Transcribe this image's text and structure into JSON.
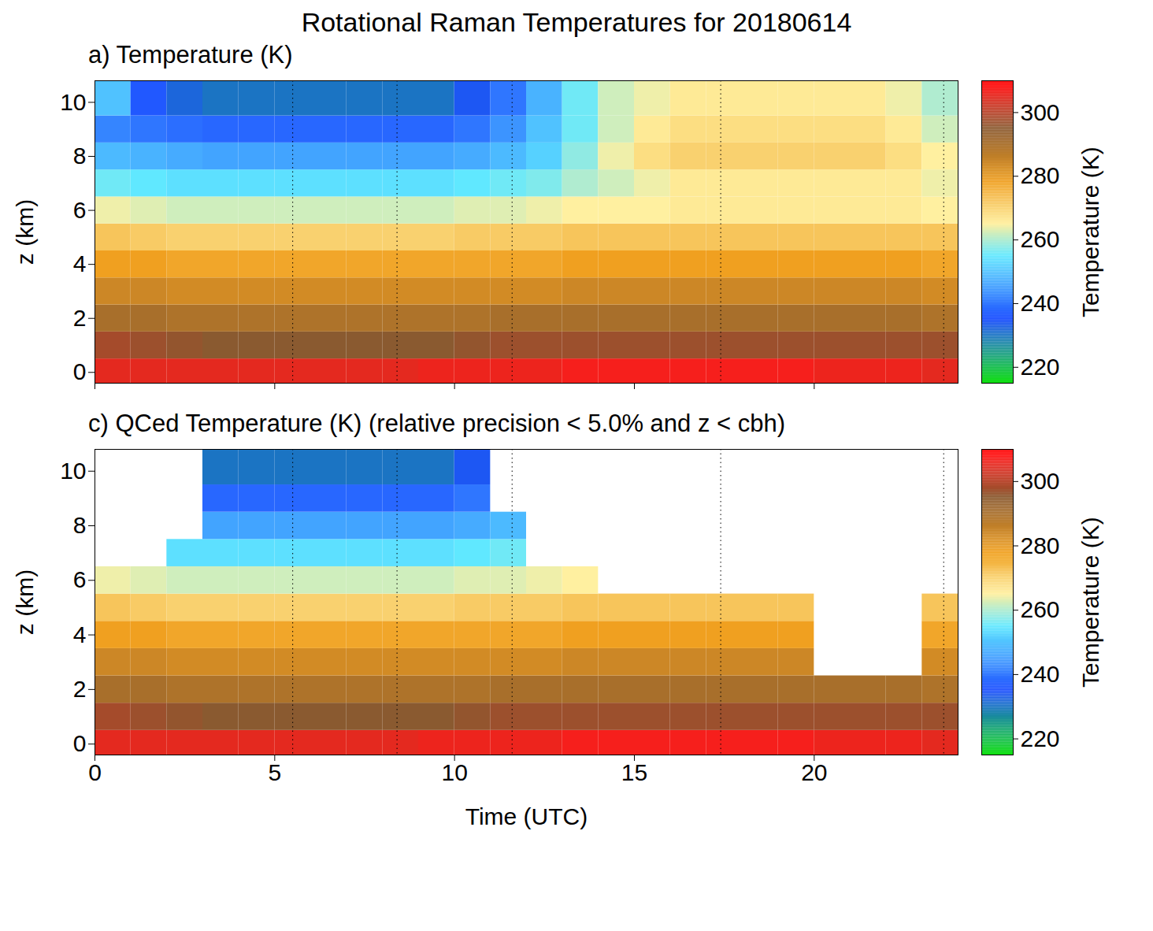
{
  "title": "Rotational Raman Temperatures for 20180614",
  "chart_data": [
    {
      "type": "heatmap",
      "title": "a) Temperature (K)",
      "ylabel": "z (km)",
      "xlim": [
        0,
        24
      ],
      "xticks": [
        0,
        5,
        10,
        15,
        20
      ],
      "ylim": [
        -0.4,
        10.8
      ],
      "yticks": [
        0,
        2,
        4,
        6,
        8,
        10
      ],
      "tick_labels": "y",
      "vlines": [
        5.5,
        8.4,
        11.6,
        17.4,
        23.6
      ],
      "x_bins": [
        0,
        1,
        2,
        3,
        4,
        5,
        6,
        7,
        8,
        9,
        10,
        11,
        12,
        13,
        14,
        15,
        16,
        17,
        18,
        19,
        20,
        21,
        22,
        23,
        24
      ],
      "y_bins": [
        -0.5,
        0.5,
        1.5,
        2.5,
        3.5,
        4.5,
        5.5,
        6.5,
        7.5,
        8.5,
        9.5,
        10.8
      ],
      "cells": [
        [
          305,
          305,
          305,
          305,
          305,
          305,
          305,
          305,
          305,
          306,
          306,
          306,
          306,
          307,
          307,
          307,
          307,
          307,
          307,
          307,
          306,
          306,
          306,
          305
        ],
        [
          298,
          297,
          296,
          295,
          295,
          295,
          295,
          295,
          295,
          295,
          296,
          297,
          297,
          297,
          297,
          297,
          297,
          297,
          297,
          297,
          297,
          297,
          297,
          297
        ],
        [
          290,
          290,
          289,
          289,
          289,
          289,
          289,
          289,
          289,
          289,
          289,
          290,
          290,
          290,
          290,
          290,
          290,
          290,
          290,
          290,
          290,
          290,
          290,
          289
        ],
        [
          284,
          284,
          283,
          283,
          283,
          283,
          283,
          283,
          283,
          283,
          283,
          283,
          283,
          284,
          284,
          284,
          284,
          284,
          284,
          284,
          284,
          284,
          284,
          283
        ],
        [
          278,
          278,
          277,
          277,
          277,
          277,
          277,
          277,
          277,
          277,
          277,
          277,
          277,
          278,
          278,
          278,
          278,
          278,
          278,
          278,
          278,
          278,
          278,
          277
        ],
        [
          272,
          271,
          270,
          270,
          270,
          270,
          270,
          270,
          270,
          270,
          271,
          271,
          271,
          272,
          272,
          272,
          272,
          272,
          272,
          272,
          272,
          272,
          272,
          272
        ],
        [
          264,
          263,
          262,
          262,
          262,
          262,
          262,
          262,
          262,
          262,
          263,
          263,
          264,
          265,
          265,
          265,
          266,
          266,
          266,
          266,
          266,
          266,
          266,
          265
        ],
        [
          256,
          255,
          254,
          254,
          254,
          254,
          254,
          254,
          254,
          254,
          255,
          256,
          257,
          260,
          262,
          264,
          266,
          266,
          266,
          266,
          266,
          266,
          266,
          264
        ],
        [
          249,
          248,
          247,
          246,
          246,
          246,
          246,
          246,
          246,
          246,
          247,
          249,
          252,
          258,
          264,
          268,
          270,
          270,
          270,
          270,
          270,
          270,
          268,
          265
        ],
        [
          242,
          240,
          239,
          238,
          238,
          238,
          238,
          238,
          238,
          238,
          240,
          244,
          250,
          256,
          262,
          266,
          268,
          268,
          268,
          268,
          268,
          268,
          266,
          262
        ],
        [
          250,
          236,
          232,
          230,
          230,
          230,
          230,
          230,
          230,
          230,
          234,
          240,
          248,
          256,
          262,
          264,
          266,
          266,
          266,
          266,
          266,
          266,
          264,
          260
        ]
      ],
      "colorbar": {
        "label": "Temperature (K)",
        "range": [
          215,
          310
        ],
        "ticks": [
          220,
          240,
          260,
          280,
          300
        ],
        "stops": [
          215,
          235,
          255,
          265,
          278,
          295,
          308
        ],
        "colors": [
          "#10e010",
          "#1e50ff",
          "#60e8ff",
          "#fff0a0",
          "#f0a020",
          "#8a5a30",
          "#ff1a1a"
        ]
      }
    },
    {
      "type": "heatmap",
      "title": "c) QCed Temperature (K) (relative precision < 5.0% and z < cbh)",
      "xlabel": "Time (UTC)",
      "ylabel": "z (km)",
      "xlim": [
        0,
        24
      ],
      "xticks": [
        0,
        5,
        10,
        15,
        20
      ],
      "ylim": [
        -0.4,
        10.8
      ],
      "yticks": [
        0,
        2,
        4,
        6,
        8,
        10
      ],
      "vlines": [
        5.5,
        8.4,
        11.6,
        17.4,
        23.6
      ],
      "x_bins": [
        0,
        1,
        2,
        3,
        4,
        5,
        6,
        7,
        8,
        9,
        10,
        11,
        12,
        13,
        14,
        15,
        16,
        17,
        18,
        19,
        20,
        21,
        22,
        23,
        24
      ],
      "y_bins": [
        -0.5,
        0.5,
        1.5,
        2.5,
        3.5,
        4.5,
        5.5,
        6.5,
        7.5,
        8.5,
        9.5,
        10.8
      ],
      "cells": [
        [
          305,
          305,
          305,
          305,
          305,
          305,
          305,
          305,
          305,
          306,
          306,
          306,
          306,
          307,
          307,
          307,
          307,
          307,
          307,
          307,
          306,
          306,
          306,
          305
        ],
        [
          298,
          297,
          296,
          295,
          295,
          295,
          295,
          295,
          295,
          295,
          296,
          297,
          297,
          297,
          297,
          297,
          297,
          297,
          297,
          297,
          297,
          297,
          297,
          297
        ],
        [
          290,
          290,
          289,
          289,
          289,
          289,
          289,
          289,
          289,
          289,
          289,
          290,
          290,
          290,
          290,
          290,
          290,
          290,
          290,
          290,
          290,
          290,
          290,
          289
        ],
        [
          284,
          284,
          283,
          283,
          283,
          283,
          283,
          283,
          283,
          283,
          283,
          283,
          283,
          284,
          284,
          284,
          284,
          284,
          284,
          284,
          null,
          null,
          null,
          283
        ],
        [
          278,
          278,
          277,
          277,
          277,
          277,
          277,
          277,
          277,
          277,
          277,
          277,
          277,
          278,
          278,
          278,
          278,
          278,
          278,
          278,
          null,
          null,
          null,
          277
        ],
        [
          272,
          271,
          270,
          270,
          270,
          270,
          270,
          270,
          270,
          270,
          271,
          271,
          271,
          272,
          272,
          272,
          272,
          272,
          272,
          272,
          null,
          null,
          null,
          272
        ],
        [
          264,
          263,
          262,
          262,
          262,
          262,
          262,
          262,
          262,
          262,
          263,
          263,
          264,
          265,
          null,
          null,
          null,
          null,
          null,
          null,
          null,
          null,
          null,
          null
        ],
        [
          null,
          null,
          254,
          254,
          254,
          254,
          254,
          254,
          254,
          254,
          255,
          256,
          null,
          null,
          null,
          null,
          null,
          null,
          null,
          null,
          null,
          null,
          null,
          null
        ],
        [
          null,
          null,
          null,
          246,
          246,
          246,
          246,
          246,
          246,
          246,
          247,
          249,
          null,
          null,
          null,
          null,
          null,
          null,
          null,
          null,
          null,
          null,
          null,
          null
        ],
        [
          null,
          null,
          null,
          238,
          238,
          238,
          238,
          238,
          238,
          238,
          240,
          null,
          null,
          null,
          null,
          null,
          null,
          null,
          null,
          null,
          null,
          null,
          null,
          null
        ],
        [
          null,
          null,
          null,
          230,
          230,
          230,
          230,
          230,
          230,
          230,
          234,
          null,
          null,
          null,
          null,
          null,
          null,
          null,
          null,
          null,
          null,
          null,
          null,
          null
        ]
      ],
      "colorbar": {
        "label": "Temperature (K)",
        "range": [
          215,
          310
        ],
        "ticks": [
          220,
          240,
          260,
          280,
          300
        ],
        "stops": [
          215,
          235,
          255,
          265,
          278,
          295,
          308
        ],
        "colors": [
          "#10e010",
          "#1e50ff",
          "#60e8ff",
          "#fff0a0",
          "#f0a020",
          "#8a5a30",
          "#ff1a1a"
        ]
      }
    }
  ]
}
